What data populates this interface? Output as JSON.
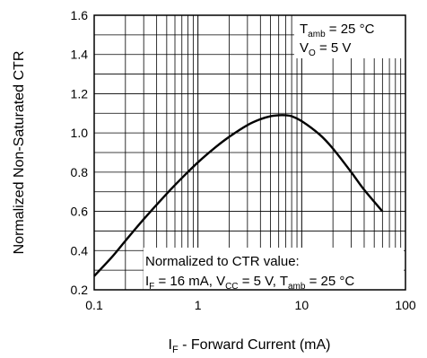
{
  "chart_data": {
    "type": "line",
    "xscale": "log",
    "xlim": [
      0.1,
      100
    ],
    "ylim": [
      0.2,
      1.6
    ],
    "grid": true,
    "x_ticks": [
      "0.1",
      "1",
      "10",
      "100"
    ],
    "y_ticks": [
      "0.2",
      "0.4",
      "0.6",
      "0.8",
      "1.0",
      "1.2",
      "1.4",
      "1.6"
    ],
    "xlabel": {
      "main": "I",
      "sub": "F",
      "rest": " - Forward Current (mA)"
    },
    "ylabel": "Normalized Non-Saturated CTR",
    "series": [
      {
        "x": [
          0.1,
          0.15,
          0.2,
          0.3,
          0.5,
          0.7,
          1,
          1.5,
          2,
          3,
          4,
          5,
          6,
          7,
          8,
          10,
          15,
          20,
          30,
          40,
          60
        ],
        "y": [
          0.27,
          0.37,
          0.45,
          0.56,
          0.69,
          0.77,
          0.85,
          0.93,
          0.98,
          1.04,
          1.07,
          1.085,
          1.09,
          1.09,
          1.085,
          1.06,
          0.99,
          0.92,
          0.8,
          0.71,
          0.6
        ]
      }
    ],
    "annotations": {
      "conditions": {
        "line1": {
          "main": "T",
          "sub": "amb",
          "rest": " = 25 °C"
        },
        "line2": {
          "main": "V",
          "sub": "O",
          "rest": " = 5 V"
        }
      },
      "normalized": {
        "line1": "Normalized to CTR value:",
        "line2": [
          {
            "t": "I"
          },
          {
            "t": "F",
            "sub": true
          },
          {
            "t": " = 16 mA, V"
          },
          {
            "t": "CC",
            "sub": true
          },
          {
            "t": " = 5 V, T"
          },
          {
            "t": "amb",
            "sub": true
          },
          {
            "t": " = 25 °C"
          }
        ]
      }
    }
  }
}
